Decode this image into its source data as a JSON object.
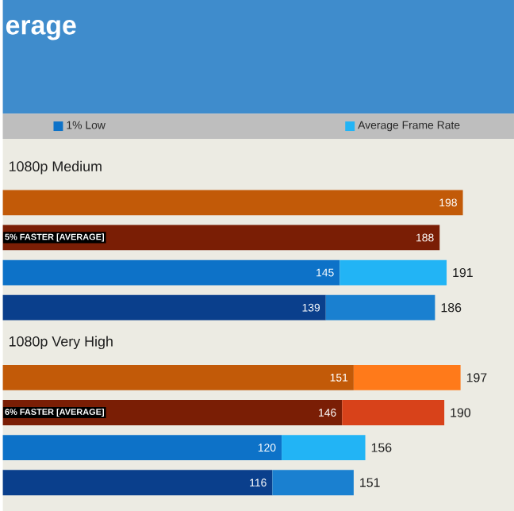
{
  "chart_data": {
    "type": "bar",
    "orientation": "horizontal",
    "title": "erage",
    "categories": [
      null,
      null,
      null,
      null,
      null,
      null,
      null,
      null
    ],
    "series": [
      {
        "name": "1% Low",
        "color": "#0d72c8",
        "colors": [
          "#c25a08",
          "#7a1e05",
          "#0d72c8",
          "#0a3f8c",
          "#c25a08",
          "#7a1e05",
          "#0d72c8",
          "#0a3f8c"
        ],
        "values": [
          198,
          188,
          145,
          139,
          151,
          146,
          120,
          116
        ],
        "value_labels": [
          "198",
          "188",
          "145",
          "139",
          "151",
          "146",
          "120",
          "116"
        ]
      },
      {
        "name": "Average Frame Rate",
        "color": "#22b4f5",
        "colors": [
          "#ff7a1a",
          "#d8421a",
          "#22b4f5",
          "#1a80d0",
          "#ff7a1a",
          "#d8421a",
          "#22b4f5",
          "#1a80d0"
        ],
        "values": [
          null,
          null,
          46,
          47,
          46,
          44,
          36,
          35
        ]
      }
    ],
    "totals": [
      null,
      null,
      "191",
      "186",
      "197",
      "190",
      "156",
      "151"
    ],
    "stacked": true,
    "annotations": [
      "1080p Medium",
      "5% FASTER [AVERAGE]",
      "1080p Very High",
      "6% FASTER [AVERAGE]"
    ],
    "xlim": [
      0,
      220
    ],
    "legend": "top"
  }
}
